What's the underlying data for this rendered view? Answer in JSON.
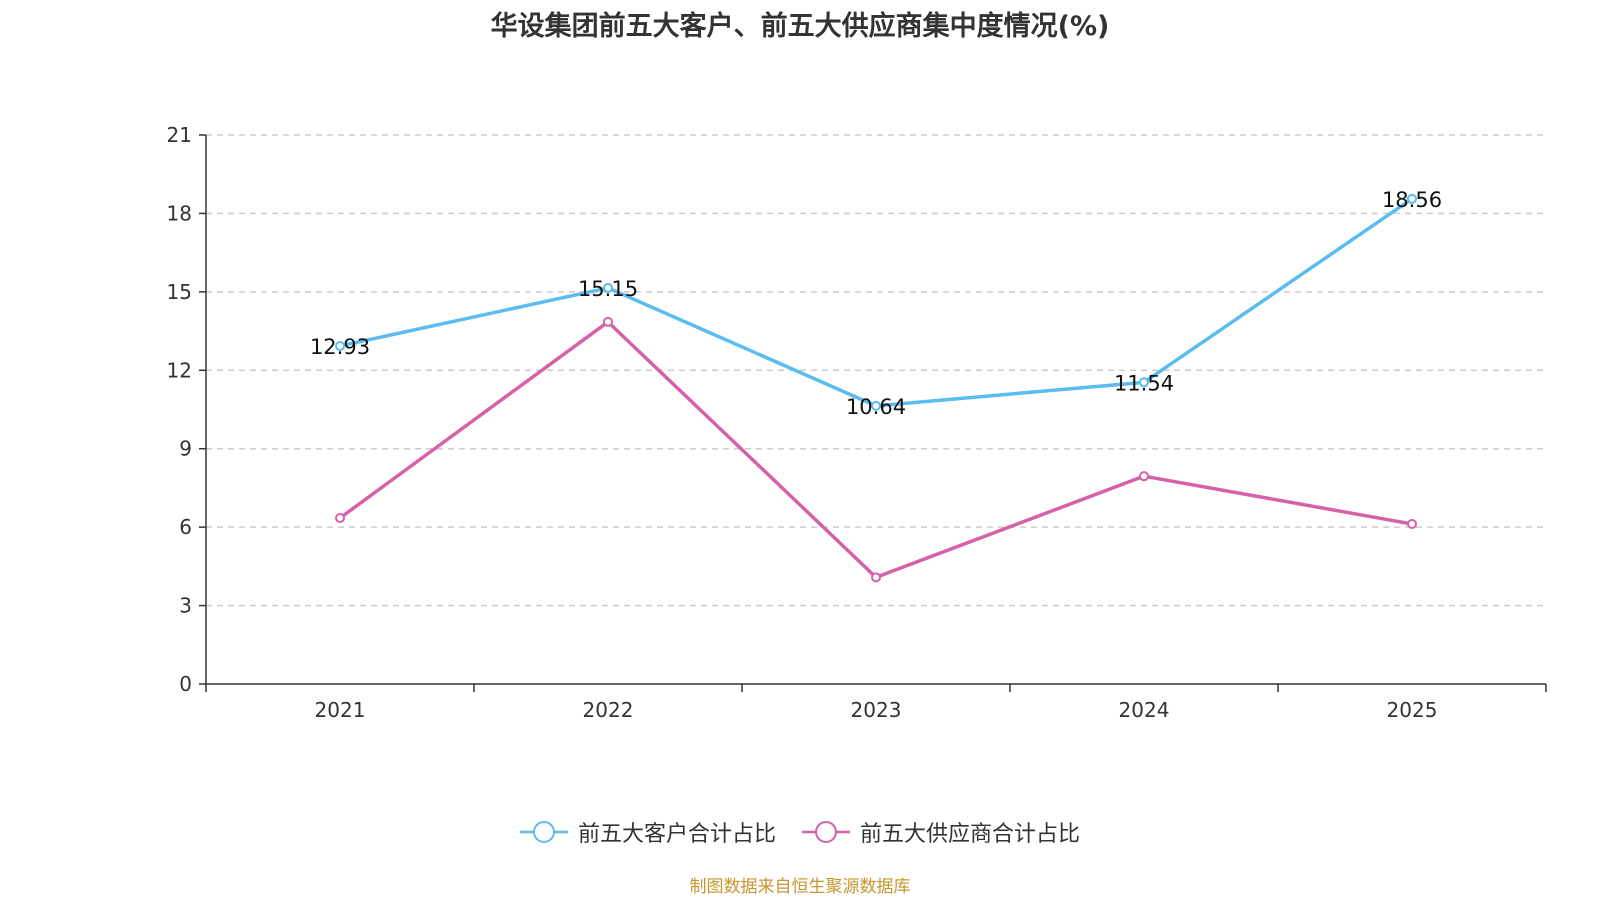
{
  "chart_data": {
    "type": "line",
    "title": "华设集团前五大客户、前五大供应商集中度情况(%)",
    "categories": [
      "2021",
      "2022",
      "2023",
      "2024",
      "2025"
    ],
    "series": [
      {
        "name": "前五大客户合计占比",
        "color": "#5bbcef",
        "values": [
          12.93,
          15.15,
          10.64,
          11.54,
          18.56
        ],
        "show_labels": true
      },
      {
        "name": "前五大供应商合计占比",
        "color": "#d661a9",
        "values": [
          6.35,
          13.85,
          4.08,
          7.95,
          6.12
        ],
        "show_labels": false
      }
    ],
    "yticks": [
      "0",
      "3",
      "6",
      "9",
      "12",
      "15",
      "18",
      "21"
    ],
    "ylim": [
      0,
      21
    ],
    "grid": true,
    "legend_position": "bottom-center",
    "xlabel": "",
    "ylabel": ""
  },
  "source": "制图数据来自恒生聚源数据库"
}
